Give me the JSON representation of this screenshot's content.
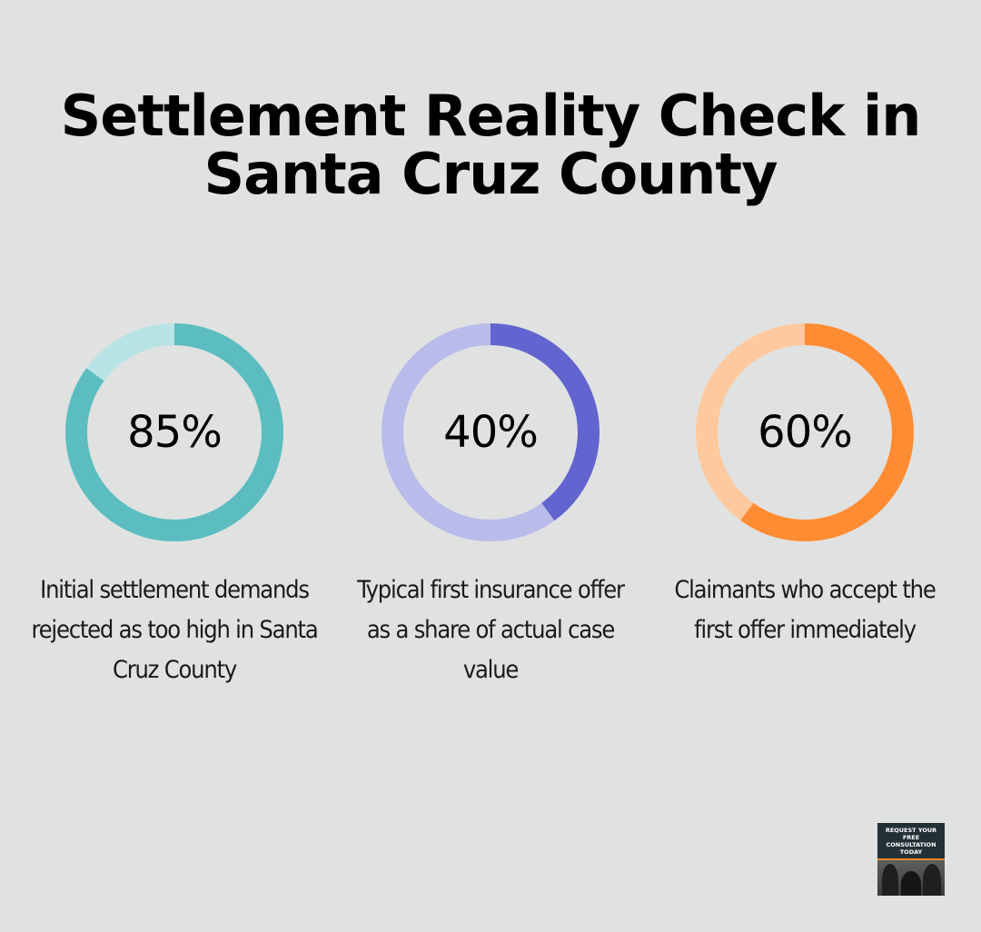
{
  "title": {
    "line1": "Settlement Reality Check in",
    "line2": "Santa Cruz County"
  },
  "stats": [
    {
      "value_label": "85%",
      "value": 85,
      "caption": "Initial settlement demands rejected as too high in Santa Cruz County",
      "color": "#5bbdc0",
      "track_color": "#b8e3e5"
    },
    {
      "value_label": "40%",
      "value": 40,
      "caption": "Typical first insurance offer as a share of actual case value",
      "color": "#6264d0",
      "track_color": "#b9bbea"
    },
    {
      "value_label": "60%",
      "value": 60,
      "caption": "Claimants who accept the first offer immediately",
      "color": "#ff8c33",
      "track_color": "#ffc9a0"
    }
  ],
  "cta": {
    "label": "REQUEST YOUR FREE CONSULTATION TODAY"
  },
  "colors": {
    "background": "#e0e2e1",
    "cta_background": "#233036",
    "cta_accent": "#e8852e"
  },
  "chart_data": {
    "type": "donut",
    "title": "Settlement Reality Check in Santa Cruz County",
    "categories": [
      "Initial settlement demands rejected as too high in Santa Cruz County",
      "Typical first insurance offer as a share of actual case value",
      "Claimants who accept the first offer immediately"
    ],
    "values": [
      85,
      40,
      60
    ],
    "unit": "%",
    "max": 100,
    "colors": [
      "#5bbdc0",
      "#6264d0",
      "#ff8c33"
    ],
    "track_colors": [
      "#b8e3e5",
      "#b9bbea",
      "#ffc9a0"
    ],
    "legend": "none",
    "grid": false
  }
}
